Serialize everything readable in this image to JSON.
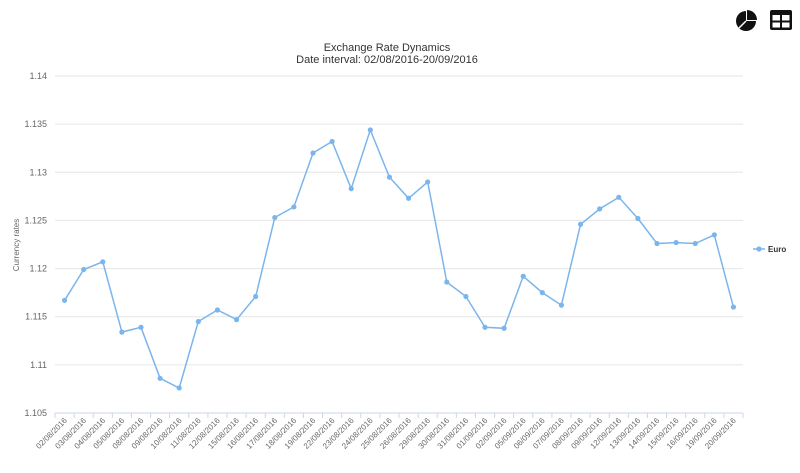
{
  "toolbar": {
    "pie_icon": "pie-chart-icon",
    "table_icon": "table-icon"
  },
  "chart_data": {
    "type": "line",
    "title": "Exchange Rate Dynamics",
    "subtitle": "Date interval: 02/08/2016-20/09/2016",
    "ylabel": "Currency rates",
    "xlabel": "",
    "ylim": [
      1.105,
      1.14
    ],
    "yticks": [
      "1.105",
      "1.11",
      "1.115",
      "1.12",
      "1.125",
      "1.13",
      "1.135",
      "1.14"
    ],
    "grid": true,
    "legend_position": "right",
    "categories": [
      "02/08/2016",
      "03/08/2016",
      "04/08/2016",
      "05/08/2016",
      "08/08/2016",
      "09/08/2016",
      "10/08/2016",
      "11/08/2016",
      "12/08/2016",
      "15/08/2016",
      "16/08/2016",
      "17/08/2016",
      "18/08/2016",
      "19/08/2016",
      "22/08/2016",
      "23/08/2016",
      "24/08/2016",
      "25/08/2016",
      "26/08/2016",
      "29/08/2016",
      "30/08/2016",
      "31/08/2016",
      "01/09/2016",
      "02/09/2016",
      "05/09/2016",
      "06/09/2016",
      "07/09/2016",
      "08/09/2016",
      "09/09/2016",
      "12/09/2016",
      "13/09/2016",
      "14/09/2016",
      "15/09/2016",
      "16/09/2016",
      "19/09/2016",
      "20/09/2016"
    ],
    "series": [
      {
        "name": "Euro",
        "color": "#7cb5ec",
        "values": [
          1.1167,
          1.1199,
          1.1207,
          1.1134,
          1.1139,
          1.1086,
          1.1076,
          1.1145,
          1.1157,
          1.1147,
          1.1171,
          1.1253,
          1.1264,
          1.132,
          1.1332,
          1.1283,
          1.1344,
          1.1295,
          1.1273,
          1.129,
          1.1186,
          1.1171,
          1.1139,
          1.1138,
          1.1192,
          1.1175,
          1.1162,
          1.1246,
          1.1262,
          1.1274,
          1.1252,
          1.1226,
          1.1227,
          1.1226,
          1.1235,
          1.116
        ]
      }
    ]
  }
}
